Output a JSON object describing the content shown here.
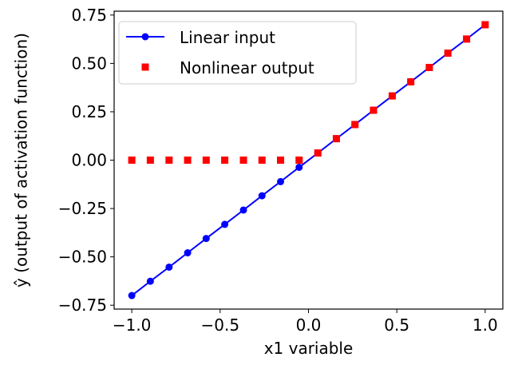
{
  "chart_data": {
    "type": "line",
    "title": "",
    "xlabel": "x1 variable",
    "ylabel": "ŷ (output of activation function)",
    "xlim": [
      -1.1,
      1.1
    ],
    "ylim": [
      -0.77,
      0.77
    ],
    "x_ticks": [
      -1.0,
      -0.5,
      0.0,
      0.5,
      1.0
    ],
    "x_tick_labels": [
      "−1.0",
      "−0.5",
      "0.0",
      "0.5",
      "1.0"
    ],
    "y_ticks": [
      0.75,
      0.5,
      0.25,
      0.0,
      -0.25,
      -0.5,
      -0.75
    ],
    "y_tick_labels": [
      "0.75",
      "0.50",
      "0.25",
      "0.00",
      "−0.25",
      "−0.50",
      "−0.75"
    ],
    "grid": false,
    "legend_position": "top-left",
    "x": [
      -1.0,
      -0.895,
      -0.789,
      -0.684,
      -0.579,
      -0.474,
      -0.368,
      -0.263,
      -0.158,
      -0.053,
      0.053,
      0.158,
      0.263,
      0.368,
      0.474,
      0.579,
      0.684,
      0.789,
      0.895,
      1.0
    ],
    "series": [
      {
        "name": "Linear input",
        "style": "line-circle",
        "color": "#0000ff",
        "values": [
          -0.7,
          -0.626,
          -0.553,
          -0.479,
          -0.405,
          -0.332,
          -0.258,
          -0.184,
          -0.111,
          -0.037,
          0.037,
          0.111,
          0.184,
          0.258,
          0.332,
          0.405,
          0.479,
          0.553,
          0.626,
          0.7
        ]
      },
      {
        "name": "Nonlinear output",
        "style": "square-marker",
        "color": "#ff0000",
        "values": [
          0.0,
          0.0,
          0.0,
          0.0,
          0.0,
          0.0,
          0.0,
          0.0,
          0.0,
          0.0,
          0.037,
          0.111,
          0.184,
          0.258,
          0.332,
          0.405,
          0.479,
          0.553,
          0.626,
          0.7
        ]
      }
    ]
  }
}
